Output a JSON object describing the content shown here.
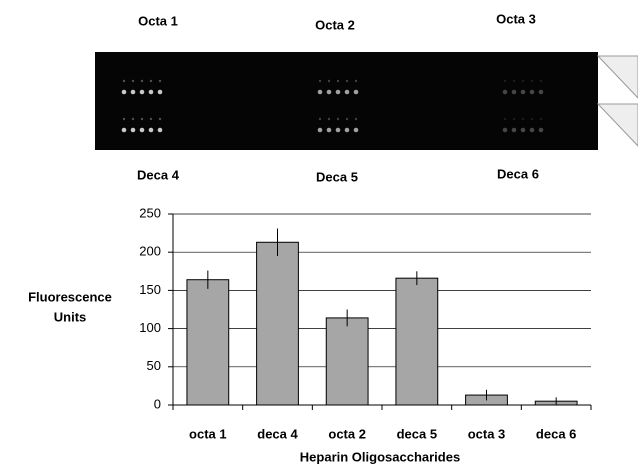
{
  "panel_labels": {
    "top": [
      "Octa 1",
      "Octa 2",
      "Octa 3"
    ],
    "bottom": [
      "Deca 4",
      "Deca 5",
      "Deca 6"
    ]
  },
  "chart_data": {
    "type": "bar",
    "ylabel": [
      "Fluorescence",
      "Units"
    ],
    "xlabel": "Heparin Oligosaccharides",
    "categories": [
      "octa 1",
      "deca 4",
      "octa 2",
      "deca 5",
      "octa 3",
      "deca 6"
    ],
    "values": [
      164,
      213,
      114,
      166,
      13,
      5
    ],
    "errors": [
      12,
      18,
      11,
      9,
      7,
      5
    ],
    "color": "#a6a6a6",
    "ylim": [
      0,
      250
    ],
    "yticks": [
      0,
      50,
      100,
      150,
      200,
      250
    ],
    "grid": true
  }
}
